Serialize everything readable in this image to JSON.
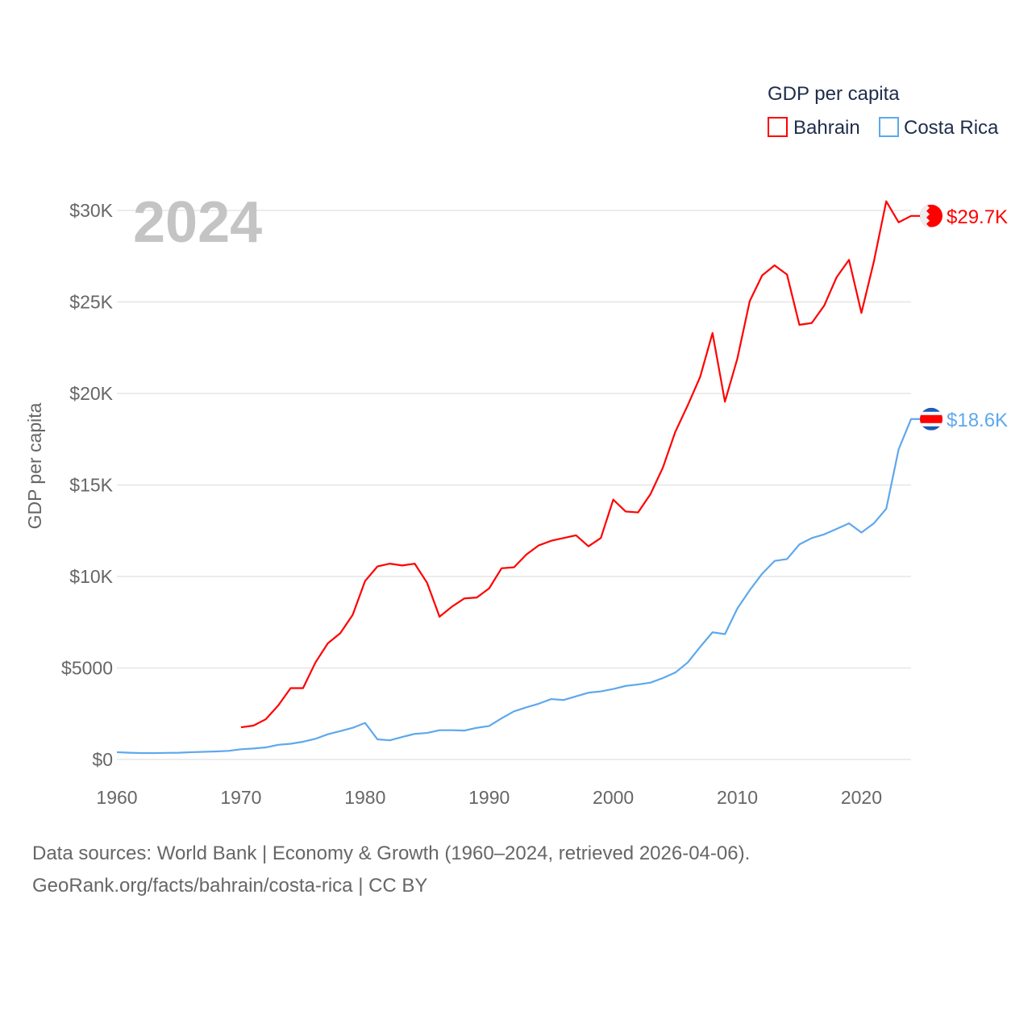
{
  "chart_data": {
    "type": "line",
    "title": "GDP per capita",
    "ylabel": "GDP per capita",
    "xlabel": "",
    "year_label": "2024",
    "xlim": [
      1960,
      2024
    ],
    "ylim": [
      0,
      30000
    ],
    "x_ticks": [
      "1960",
      "1970",
      "1980",
      "1990",
      "2000",
      "2010",
      "2020"
    ],
    "x_tick_values": [
      1960,
      1970,
      1980,
      1990,
      2000,
      2010,
      2020
    ],
    "y_ticks": [
      "$0",
      "$5000",
      "$10K",
      "$15K",
      "$20K",
      "$25K",
      "$30K"
    ],
    "y_tick_values": [
      0,
      5000,
      10000,
      15000,
      20000,
      25000,
      30000
    ],
    "grid": true,
    "legend_placement": "top-right",
    "series": [
      {
        "name": "Bahrain",
        "color": "#ff0000",
        "end_label": "$29.7K",
        "start_year": 1970,
        "values": [
          1760,
          1850,
          2200,
          2950,
          3900,
          3900,
          5300,
          6350,
          6900,
          7900,
          9750,
          10550,
          10700,
          10600,
          10700,
          9650,
          7800,
          8350,
          8800,
          8850,
          9350,
          10450,
          10500,
          11200,
          11700,
          11950,
          12100,
          12250,
          11650,
          12100,
          14200,
          13550,
          13500,
          14500,
          15950,
          17900,
          19350,
          20900,
          23300,
          19550,
          21900,
          25050,
          26450,
          27000,
          26500,
          23750,
          23850,
          24800,
          26350,
          27300,
          24400,
          27200,
          30500,
          29350,
          29700
        ]
      },
      {
        "name": "Costa Rica",
        "color": "#5ea8ec",
        "end_label": "$18.6K",
        "start_year": 1960,
        "values": [
          400,
          370,
          350,
          350,
          360,
          370,
          400,
          420,
          440,
          470,
          560,
          600,
          660,
          800,
          860,
          970,
          1130,
          1380,
          1550,
          1730,
          2000,
          1100,
          1050,
          1230,
          1400,
          1450,
          1600,
          1600,
          1580,
          1730,
          1830,
          2250,
          2630,
          2850,
          3050,
          3300,
          3250,
          3450,
          3650,
          3720,
          3850,
          4020,
          4100,
          4200,
          4450,
          4750,
          5300,
          6150,
          6950,
          6850,
          8250,
          9250,
          10150,
          10850,
          10950,
          11750,
          12100,
          12300,
          12600,
          12900,
          12400,
          12900,
          13700,
          16950,
          18600
        ]
      }
    ]
  },
  "footer": {
    "line1": "Data sources: World Bank | Economy & Growth (1960–2024, retrieved 2026-04-06).",
    "line2": "GeoRank.org/facts/bahrain/costa-rica | CC BY"
  }
}
